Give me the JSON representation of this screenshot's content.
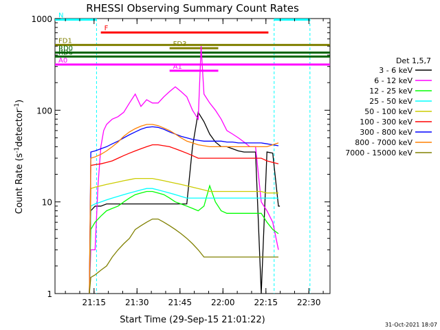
{
  "chart_data": {
    "type": "line",
    "title": "RHESSI Observing Summary Count Rates",
    "xlabel": "Start Time (29-Sep-15 21:01:22)",
    "ylabel": "Count Rate (s",
    "ylabel_sup": "-1",
    "ylabel_tail": "detector",
    "ylabel_close": ")",
    "x_unit": "minutes after 21:01:22 UT",
    "xlim": [
      0,
      96
    ],
    "ylim": [
      1,
      1000
    ],
    "y_scale": "log",
    "x_ticks": [
      {
        "t": 13.63,
        "label": "21:15"
      },
      {
        "t": 28.63,
        "label": "21:30"
      },
      {
        "t": 43.63,
        "label": "21:45"
      },
      {
        "t": 58.63,
        "label": "22:00"
      },
      {
        "t": 73.63,
        "label": "22:15"
      },
      {
        "t": 88.63,
        "label": "22:30"
      }
    ],
    "y_ticks": [
      {
        "v": 1,
        "label": "1"
      },
      {
        "v": 10,
        "label": "10"
      },
      {
        "v": 100,
        "label": "100"
      },
      {
        "v": 1000,
        "label": "1000"
      }
    ],
    "legend_title": "Det 1,5,7",
    "legend_position": "right",
    "series": [
      {
        "name": "3 - 6 keV",
        "color": "#000000",
        "x": [
          12,
          12.5,
          14,
          16,
          18,
          20,
          22,
          24,
          26,
          28,
          30,
          32,
          34,
          36,
          38,
          40,
          42,
          44,
          46,
          48,
          50,
          52,
          54,
          56,
          58,
          60,
          62,
          64,
          66,
          68,
          70,
          72,
          74,
          76,
          78,
          78.5
        ],
        "y": [
          0,
          8,
          9,
          9,
          9.5,
          9.5,
          9.5,
          9.5,
          9.5,
          9.5,
          9.5,
          9.5,
          9.5,
          9.5,
          9.5,
          9.5,
          9.5,
          9.5,
          9.5,
          40,
          95,
          75,
          55,
          45,
          40,
          40,
          38,
          36,
          35,
          35,
          35,
          0,
          35,
          34,
          9,
          9
        ]
      },
      {
        "name": "6 - 12 keV",
        "color": "#ff00ff",
        "x": [
          12,
          12.5,
          14,
          15,
          16,
          17,
          18,
          19,
          20,
          22,
          24,
          26,
          28,
          30,
          32,
          34,
          36,
          38,
          40,
          42,
          44,
          46,
          48,
          50,
          51,
          52,
          54,
          56,
          58,
          60,
          62,
          64,
          66,
          68,
          70,
          72,
          74,
          76,
          78
        ],
        "y": [
          0,
          3,
          3,
          15,
          40,
          60,
          70,
          75,
          80,
          85,
          95,
          120,
          150,
          110,
          130,
          120,
          120,
          140,
          160,
          180,
          160,
          140,
          100,
          80,
          500,
          150,
          120,
          100,
          80,
          60,
          55,
          50,
          45,
          40,
          40,
          10,
          8,
          6,
          3
        ]
      },
      {
        "name": "12 - 25 keV",
        "color": "#00ff00",
        "x": [
          12,
          12.5,
          14,
          16,
          18,
          20,
          22,
          24,
          26,
          28,
          30,
          32,
          34,
          36,
          38,
          40,
          42,
          44,
          46,
          48,
          50,
          52,
          54,
          56,
          58,
          60,
          62,
          64,
          66,
          68,
          70,
          72,
          74,
          76,
          78
        ],
        "y": [
          0,
          5,
          6,
          7,
          8,
          8.5,
          9,
          10,
          11,
          12,
          12.5,
          13,
          13,
          12.5,
          12,
          11,
          10,
          9.5,
          9,
          8.5,
          8,
          9,
          15,
          10,
          8,
          7.5,
          7.5,
          7.5,
          7.5,
          7.5,
          7.5,
          7.5,
          6,
          5,
          4.5
        ]
      },
      {
        "name": "25 - 50 keV",
        "color": "#00ffff",
        "x": [
          12,
          12.5,
          14,
          16,
          18,
          20,
          22,
          24,
          26,
          28,
          30,
          32,
          34,
          36,
          38,
          40,
          42,
          44,
          46,
          48,
          50,
          52,
          54,
          56,
          58,
          60,
          62,
          64,
          66,
          68,
          70,
          72,
          74,
          76,
          78
        ],
        "y": [
          0,
          9,
          9.5,
          10,
          10.5,
          11,
          11.5,
          12,
          12.5,
          13,
          13.5,
          14,
          14,
          13.5,
          13,
          12.5,
          12,
          11.5,
          11,
          11,
          11,
          11,
          11,
          11,
          11,
          11,
          11,
          11,
          11,
          11,
          11,
          11,
          11,
          11,
          11
        ]
      },
      {
        "name": "50 - 100 keV",
        "color": "#cccc00",
        "x": [
          12,
          12.5,
          14,
          16,
          18,
          20,
          22,
          24,
          26,
          28,
          30,
          32,
          34,
          36,
          38,
          40,
          42,
          44,
          46,
          48,
          50,
          52,
          54,
          56,
          58,
          60,
          62,
          64,
          66,
          68,
          70,
          72,
          74,
          76,
          78
        ],
        "y": [
          0,
          14,
          14.5,
          15,
          15.5,
          16,
          16.5,
          17,
          17.5,
          18,
          18,
          18,
          18,
          17.5,
          17,
          16.5,
          16,
          15.5,
          15,
          14.5,
          14,
          13.5,
          13,
          13,
          13,
          13,
          13,
          13,
          13,
          13,
          13,
          13,
          12.5,
          12.5,
          12.5
        ]
      },
      {
        "name": "100 - 300 keV",
        "color": "#ff0000",
        "x": [
          12,
          12.5,
          14,
          16,
          18,
          20,
          22,
          24,
          26,
          28,
          30,
          32,
          34,
          36,
          38,
          40,
          42,
          44,
          46,
          48,
          50,
          52,
          54,
          56,
          58,
          60,
          62,
          64,
          66,
          68,
          70,
          72,
          74,
          76,
          78
        ],
        "y": [
          0,
          25,
          25.5,
          26,
          27,
          28,
          30,
          32,
          34,
          36,
          38,
          40,
          42,
          42,
          41,
          40,
          38,
          36,
          34,
          32,
          30,
          30,
          30,
          30,
          30,
          30,
          30,
          30,
          30,
          30,
          30,
          30,
          28,
          27,
          26
        ]
      },
      {
        "name": "300 - 800 keV",
        "color": "#0000ff",
        "x": [
          12,
          12.5,
          14,
          16,
          18,
          20,
          22,
          24,
          26,
          28,
          30,
          32,
          34,
          36,
          38,
          40,
          42,
          44,
          46,
          48,
          50,
          52,
          54,
          56,
          58,
          60,
          62,
          64,
          66,
          68,
          70,
          72,
          74,
          76,
          78
        ],
        "y": [
          0,
          35,
          36,
          38,
          40,
          43,
          46,
          50,
          54,
          58,
          62,
          65,
          66,
          65,
          62,
          58,
          55,
          52,
          50,
          48,
          47,
          46,
          46,
          46,
          46,
          45,
          45,
          44,
          44,
          44,
          44,
          44,
          43,
          42,
          41
        ]
      },
      {
        "name": "800 - 7000 keV",
        "color": "#ff8000",
        "x": [
          12,
          12.5,
          14,
          16,
          18,
          20,
          22,
          24,
          26,
          28,
          30,
          32,
          34,
          36,
          38,
          40,
          42,
          44,
          46,
          48,
          50,
          52,
          54,
          56,
          58,
          60,
          62,
          64,
          66,
          68,
          70,
          72,
          74,
          76,
          78
        ],
        "y": [
          0,
          30,
          31,
          33,
          36,
          40,
          45,
          52,
          58,
          63,
          67,
          70,
          70,
          68,
          64,
          60,
          55,
          50,
          46,
          44,
          42,
          41,
          40,
          40,
          40,
          40,
          40,
          40,
          40,
          40,
          40,
          40,
          40,
          42,
          44
        ]
      },
      {
        "name": "7000 - 15000 keV",
        "color": "#808000",
        "x": [
          12,
          12.5,
          14,
          16,
          18,
          20,
          22,
          24,
          26,
          28,
          30,
          32,
          34,
          36,
          38,
          40,
          42,
          44,
          46,
          48,
          50,
          52,
          54,
          56,
          58,
          60,
          62,
          64,
          66,
          68,
          70,
          72,
          74,
          76,
          78
        ],
        "y": [
          0,
          1.5,
          1.6,
          1.8,
          2,
          2.5,
          3,
          3.5,
          4,
          5,
          5.5,
          6,
          6.5,
          6.5,
          6,
          5.5,
          5,
          4.5,
          4,
          3.5,
          3,
          2.5,
          2.5,
          2.5,
          2.5,
          2.5,
          2.5,
          2.5,
          2.5,
          2.5,
          2.5,
          2.5,
          2.5,
          2.5,
          2.5
        ]
      }
    ],
    "flags": [
      {
        "label": "N",
        "color": "#00ffff",
        "segments": [
          [
            0,
            14.5
          ],
          [
            76.5,
            89
          ]
        ],
        "y": 975
      },
      {
        "label": "F",
        "color": "#ff0000",
        "segments": [
          [
            16,
            74.5
          ]
        ],
        "y": 705
      },
      {
        "label": "FD1",
        "color": "#808000",
        "segments": [
          [
            0,
            96
          ]
        ],
        "y": 515
      },
      {
        "label": "FD3",
        "color": "#808000",
        "segments": [
          [
            40,
            57
          ]
        ],
        "y": 475
      },
      {
        "label": "RD0",
        "color": "#006400",
        "segments": [
          [
            0,
            96
          ]
        ],
        "y": 425
      },
      {
        "label": "RD6",
        "color": "#006400",
        "segments": [
          [
            0,
            96
          ]
        ],
        "y": 385
      },
      {
        "label": "A0",
        "color": "#ff00ff",
        "segments": [
          [
            0,
            96
          ]
        ],
        "y": 315
      },
      {
        "label": "A1",
        "color": "#ff00ff",
        "segments": [
          [
            40,
            57
          ]
        ],
        "y": 270
      }
    ],
    "vlines": [
      {
        "t": 14.5,
        "color": "#00ffff"
      },
      {
        "t": 76.5,
        "color": "#00ffff"
      },
      {
        "t": 89,
        "color": "#00ffff"
      }
    ]
  },
  "footer_date": "31-Oct-2021 18:07"
}
